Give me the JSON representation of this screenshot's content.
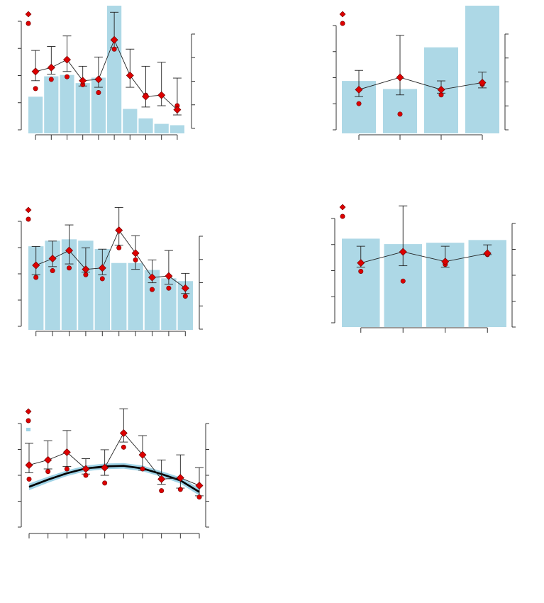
{
  "colors": {
    "bar_fill": "#add8e6",
    "point_red": "#dd0000",
    "point_stroke": "#700000",
    "line": "#222222",
    "axis": "#333333",
    "smooth_line": "#000000",
    "band": "#9fd3e6"
  },
  "chart_data": [
    {
      "type": "bar",
      "panel": "top-left",
      "bars": [
        1.35,
        2.1,
        2.15,
        1.85,
        2.05,
        4.7,
        0.9,
        0.55,
        0.35,
        0.3
      ],
      "markers": [
        2.2,
        2.35,
        2.65,
        1.85,
        1.9,
        3.4,
        2.05,
        1.25,
        1.3,
        0.75
      ],
      "ci_low": [
        1.85,
        2.1,
        2.2,
        1.65,
        1.6,
        3.1,
        1.6,
        0.85,
        0.9,
        0.55
      ],
      "ci_high": [
        3.0,
        3.15,
        3.55,
        2.4,
        2.75,
        4.45,
        3.05,
        2.4,
        2.55,
        1.95
      ],
      "points": [
        1.55,
        1.9,
        2.0,
        1.7,
        1.4,
        3.05,
        2.05,
        1.3,
        1.3,
        0.9
      ],
      "ylim_bar": [
        0,
        4.7
      ],
      "ylim_marker": [
        -0.15,
        4.7
      ],
      "legend": {
        "marker": "",
        "point": ""
      }
    },
    {
      "type": "bar",
      "panel": "top-right",
      "bars": [
        1.95,
        1.65,
        3.2,
        4.75
      ],
      "markers": [
        2.35,
        2.7,
        2.35,
        2.55
      ],
      "ci_low": [
        2.15,
        2.2,
        2.25,
        2.4
      ],
      "ci_high": [
        2.9,
        3.9,
        2.6,
        2.85
      ],
      "points": [
        1.95,
        1.65,
        2.2,
        2.5
      ],
      "ylim_bar": [
        0,
        4.75
      ],
      "ylim_marker": [
        1.1,
        4.75
      ],
      "legend": {
        "marker": "",
        "point": ""
      }
    },
    {
      "type": "bar",
      "panel": "middle-left",
      "bars": [
        3.0,
        3.2,
        3.25,
        3.2,
        2.9,
        2.4,
        2.4,
        2.15,
        1.85,
        1.75
      ],
      "markers": [
        2.25,
        2.5,
        2.8,
        2.1,
        2.15,
        3.55,
        2.7,
        1.8,
        1.85,
        1.4
      ],
      "ci_low": [
        1.9,
        2.2,
        2.3,
        2.0,
        1.9,
        3.0,
        2.1,
        1.6,
        1.55,
        1.2
      ],
      "ci_high": [
        2.95,
        3.15,
        3.75,
        2.9,
        2.85,
        4.4,
        3.35,
        2.45,
        2.8,
        1.95
      ],
      "points": [
        1.8,
        2.05,
        2.15,
        1.9,
        1.75,
        2.9,
        2.45,
        1.35,
        1.4,
        1.1
      ],
      "ylim_bar": [
        0,
        4.2
      ],
      "ylim_marker": [
        -0.15,
        4.2
      ],
      "legend": {
        "marker": "",
        "point": ""
      }
    },
    {
      "type": "bar",
      "panel": "middle-right",
      "bars": [
        3.25,
        3.05,
        3.1,
        3.2
      ],
      "markers": [
        2.4,
        2.8,
        2.45,
        2.75
      ],
      "ci_low": [
        2.25,
        2.3,
        2.25,
        2.7
      ],
      "ci_high": [
        3.0,
        4.45,
        3.0,
        3.05
      ],
      "points": [
        2.1,
        1.75,
        2.35,
        2.7
      ],
      "ylim_bar": [
        0,
        4.2
      ],
      "ylim_marker": [
        0.1,
        4.2
      ],
      "legend": {
        "marker": "",
        "point": ""
      }
    },
    {
      "type": "line",
      "panel": "bottom-left",
      "x": [
        1,
        2,
        3,
        4,
        5,
        6,
        7,
        8,
        9,
        10
      ],
      "markers": [
        2.15,
        2.35,
        2.65,
        2.0,
        2.05,
        3.4,
        2.55,
        1.6,
        1.65,
        1.35
      ],
      "ci_low": [
        1.85,
        2.0,
        2.1,
        1.8,
        1.75,
        3.05,
        1.95,
        1.4,
        1.25,
        0.95
      ],
      "ci_high": [
        3.0,
        3.1,
        3.5,
        2.4,
        2.75,
        4.35,
        3.3,
        2.35,
        2.55,
        2.05
      ],
      "points": [
        1.6,
        1.9,
        2.0,
        1.75,
        1.45,
        2.85,
        2.0,
        1.15,
        1.2,
        0.9
      ],
      "smooth": [
        1.3,
        1.58,
        1.83,
        2.02,
        2.1,
        2.12,
        2.02,
        1.8,
        1.55,
        1.1
      ],
      "band_halfwidth": [
        0.13,
        0.12,
        0.11,
        0.11,
        0.11,
        0.11,
        0.11,
        0.11,
        0.12,
        0.14
      ],
      "ylim": [
        -0.3,
        4.3
      ],
      "legend": {
        "marker": "",
        "point": "",
        "band": ""
      }
    }
  ]
}
